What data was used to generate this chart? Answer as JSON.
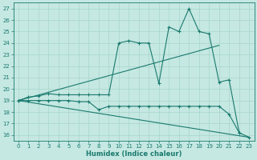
{
  "xlabel": "Humidex (Indice chaleur)",
  "xlim": [
    -0.5,
    23.5
  ],
  "ylim": [
    15.5,
    27.5
  ],
  "xticks": [
    0,
    1,
    2,
    3,
    4,
    5,
    6,
    7,
    8,
    9,
    10,
    11,
    12,
    13,
    14,
    15,
    16,
    17,
    18,
    19,
    20,
    21,
    22,
    23
  ],
  "yticks": [
    16,
    17,
    18,
    19,
    20,
    21,
    22,
    23,
    24,
    25,
    26,
    27
  ],
  "bg_color": "#c5e8e2",
  "line_color": "#1a7a6e",
  "grid_color": "#a8d5cc",
  "line1_zigzag": {
    "x": [
      0,
      1,
      2,
      3,
      4,
      5,
      6,
      7,
      8,
      9,
      10,
      11,
      12,
      13,
      14,
      15,
      16,
      17,
      18,
      19,
      20,
      21,
      22
    ],
    "y": [
      19.0,
      19.3,
      19.4,
      19.6,
      19.5,
      19.5,
      19.5,
      19.5,
      19.5,
      19.5,
      24.0,
      24.2,
      24.0,
      24.0,
      20.5,
      25.4,
      25.0,
      27.0,
      25.0,
      24.8,
      20.6,
      20.8,
      16.2
    ]
  },
  "line2_lower": {
    "x": [
      0,
      1,
      2,
      3,
      4,
      5,
      6,
      7,
      8,
      9,
      10,
      11,
      12,
      13,
      14,
      15,
      16,
      17,
      18,
      19,
      20,
      21,
      22,
      23
    ],
    "y": [
      19.0,
      19.0,
      19.0,
      19.0,
      19.0,
      19.0,
      18.9,
      18.9,
      18.2,
      18.5,
      18.5,
      18.5,
      18.5,
      18.5,
      18.5,
      18.5,
      18.5,
      18.5,
      18.5,
      18.5,
      18.5,
      17.8,
      16.2,
      15.8
    ]
  },
  "line3_straight_up": {
    "x": [
      0,
      20
    ],
    "y": [
      19.0,
      23.8
    ]
  },
  "line4_straight_down": {
    "x": [
      0,
      23
    ],
    "y": [
      19.0,
      15.8
    ]
  }
}
